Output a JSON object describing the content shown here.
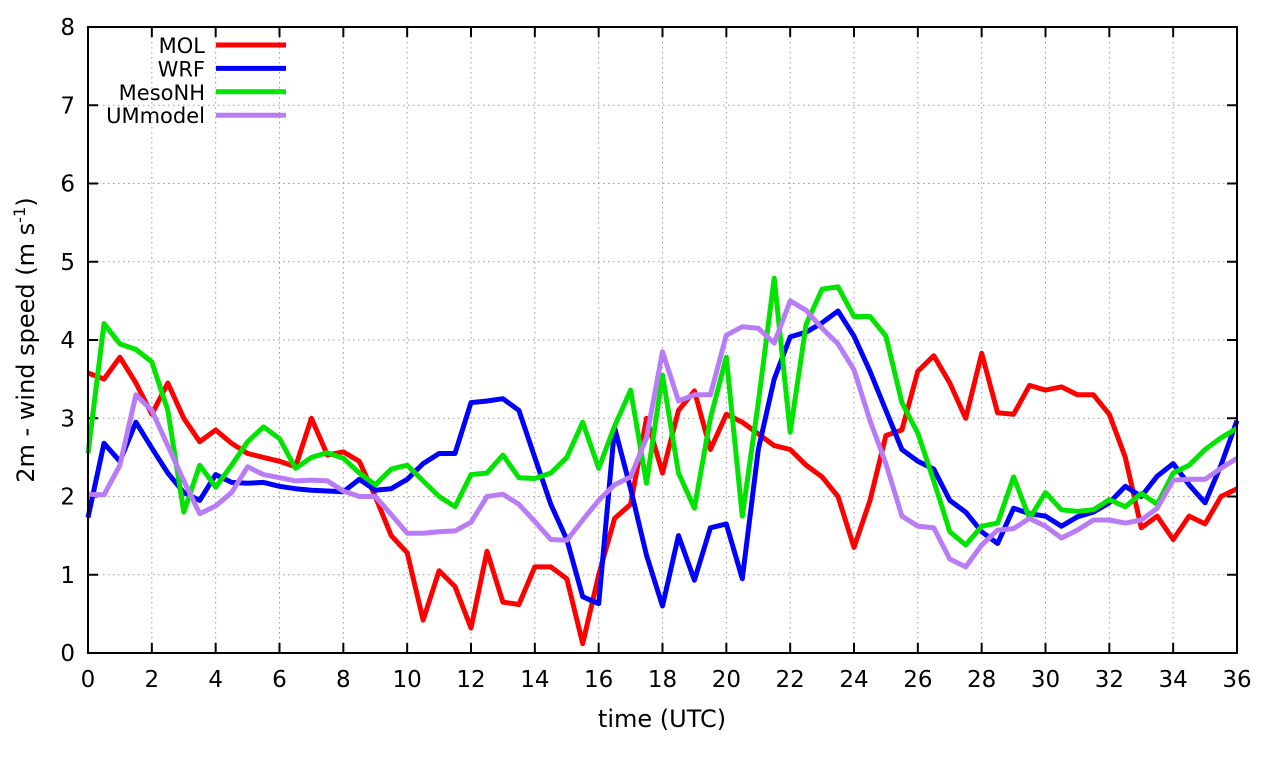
{
  "chart_data": {
    "type": "line",
    "title": "",
    "xlabel": "time (UTC)",
    "ylabel_main": "2m - wind speed  (m s",
    "ylabel_sup": "-1",
    "ylabel_close": ")",
    "xlim": [
      0,
      36
    ],
    "ylim": [
      0,
      8
    ],
    "x_tick_step": 2,
    "y_tick_step": 1,
    "grid": true,
    "legend_position": "top-left",
    "background_color": "#ffffff",
    "grid_color": "#9a9a9a",
    "axis_color": "#000000",
    "x_start": 0,
    "x_step": 0.5,
    "series": [
      {
        "name": "MOL",
        "color": "#ff0000",
        "values": [
          3.58,
          3.5,
          3.78,
          3.45,
          3.05,
          3.45,
          3.0,
          2.7,
          2.85,
          2.68,
          2.55,
          2.5,
          2.45,
          2.38,
          3.0,
          2.53,
          2.57,
          2.45,
          2.0,
          1.5,
          1.28,
          0.42,
          1.05,
          0.85,
          0.32,
          1.3,
          0.65,
          0.62,
          1.1,
          1.1,
          0.95,
          0.12,
          1.0,
          1.72,
          1.9,
          3.0,
          2.3,
          3.1,
          3.35,
          2.6,
          3.05,
          2.95,
          2.8,
          2.65,
          2.6,
          2.4,
          2.25,
          2.0,
          1.35,
          1.95,
          2.78,
          2.85,
          3.6,
          3.8,
          3.45,
          3.0,
          3.83,
          3.07,
          3.05,
          3.42,
          3.36,
          3.4,
          3.3,
          3.3,
          3.05,
          2.5,
          1.6,
          1.75,
          1.45,
          1.75,
          1.65,
          2.0,
          2.1
        ]
      },
      {
        "name": "WRF",
        "color": "#0000ff",
        "values": [
          1.73,
          2.68,
          2.45,
          2.95,
          2.62,
          2.3,
          2.05,
          1.95,
          2.28,
          2.18,
          2.17,
          2.18,
          2.13,
          2.1,
          2.08,
          2.07,
          2.06,
          2.22,
          2.08,
          2.1,
          2.22,
          2.42,
          2.55,
          2.55,
          3.2,
          3.22,
          3.25,
          3.1,
          2.5,
          1.9,
          1.45,
          0.72,
          0.63,
          2.88,
          2.1,
          1.25,
          0.6,
          1.5,
          0.93,
          1.6,
          1.65,
          0.95,
          2.6,
          3.5,
          4.04,
          4.1,
          4.22,
          4.37,
          4.05,
          3.6,
          3.1,
          2.6,
          2.45,
          2.35,
          1.95,
          1.8,
          1.55,
          1.4,
          1.85,
          1.78,
          1.75,
          1.62,
          1.74,
          1.8,
          1.92,
          2.13,
          2.0,
          2.26,
          2.42,
          2.15,
          1.92,
          2.4,
          2.97
        ]
      },
      {
        "name": "MesoNH",
        "color": "#00e400",
        "values": [
          2.55,
          4.21,
          3.95,
          3.88,
          3.72,
          3.1,
          1.8,
          2.4,
          2.12,
          2.4,
          2.7,
          2.89,
          2.74,
          2.36,
          2.5,
          2.56,
          2.49,
          2.3,
          2.15,
          2.35,
          2.4,
          2.2,
          2.0,
          1.87,
          2.28,
          2.3,
          2.53,
          2.24,
          2.23,
          2.3,
          2.5,
          2.95,
          2.36,
          2.9,
          3.36,
          2.17,
          3.55,
          2.3,
          1.85,
          3.0,
          3.78,
          1.75,
          3.2,
          4.79,
          2.82,
          4.2,
          4.65,
          4.68,
          4.3,
          4.3,
          4.05,
          3.2,
          2.81,
          2.2,
          1.55,
          1.38,
          1.62,
          1.66,
          2.25,
          1.72,
          2.05,
          1.83,
          1.81,
          1.83,
          1.96,
          1.87,
          2.04,
          1.9,
          2.3,
          2.4,
          2.6,
          2.75,
          2.87
        ]
      },
      {
        "name": "UMmodel",
        "color": "#b97cf7",
        "values": [
          2.03,
          2.02,
          2.4,
          3.3,
          3.1,
          2.65,
          2.2,
          1.78,
          1.88,
          2.05,
          2.38,
          2.28,
          2.24,
          2.2,
          2.21,
          2.2,
          2.07,
          2.0,
          2.0,
          1.77,
          1.53,
          1.53,
          1.55,
          1.56,
          1.67,
          2.0,
          2.03,
          1.9,
          1.68,
          1.45,
          1.44,
          1.7,
          1.95,
          2.15,
          2.25,
          2.75,
          3.85,
          3.22,
          3.3,
          3.3,
          4.06,
          4.17,
          4.15,
          3.96,
          4.5,
          4.38,
          4.15,
          3.95,
          3.62,
          2.97,
          2.42,
          1.75,
          1.62,
          1.6,
          1.2,
          1.1,
          1.38,
          1.57,
          1.59,
          1.72,
          1.62,
          1.47,
          1.57,
          1.7,
          1.7,
          1.66,
          1.7,
          1.85,
          2.21,
          2.22,
          2.22,
          2.36,
          2.49
        ]
      }
    ]
  }
}
